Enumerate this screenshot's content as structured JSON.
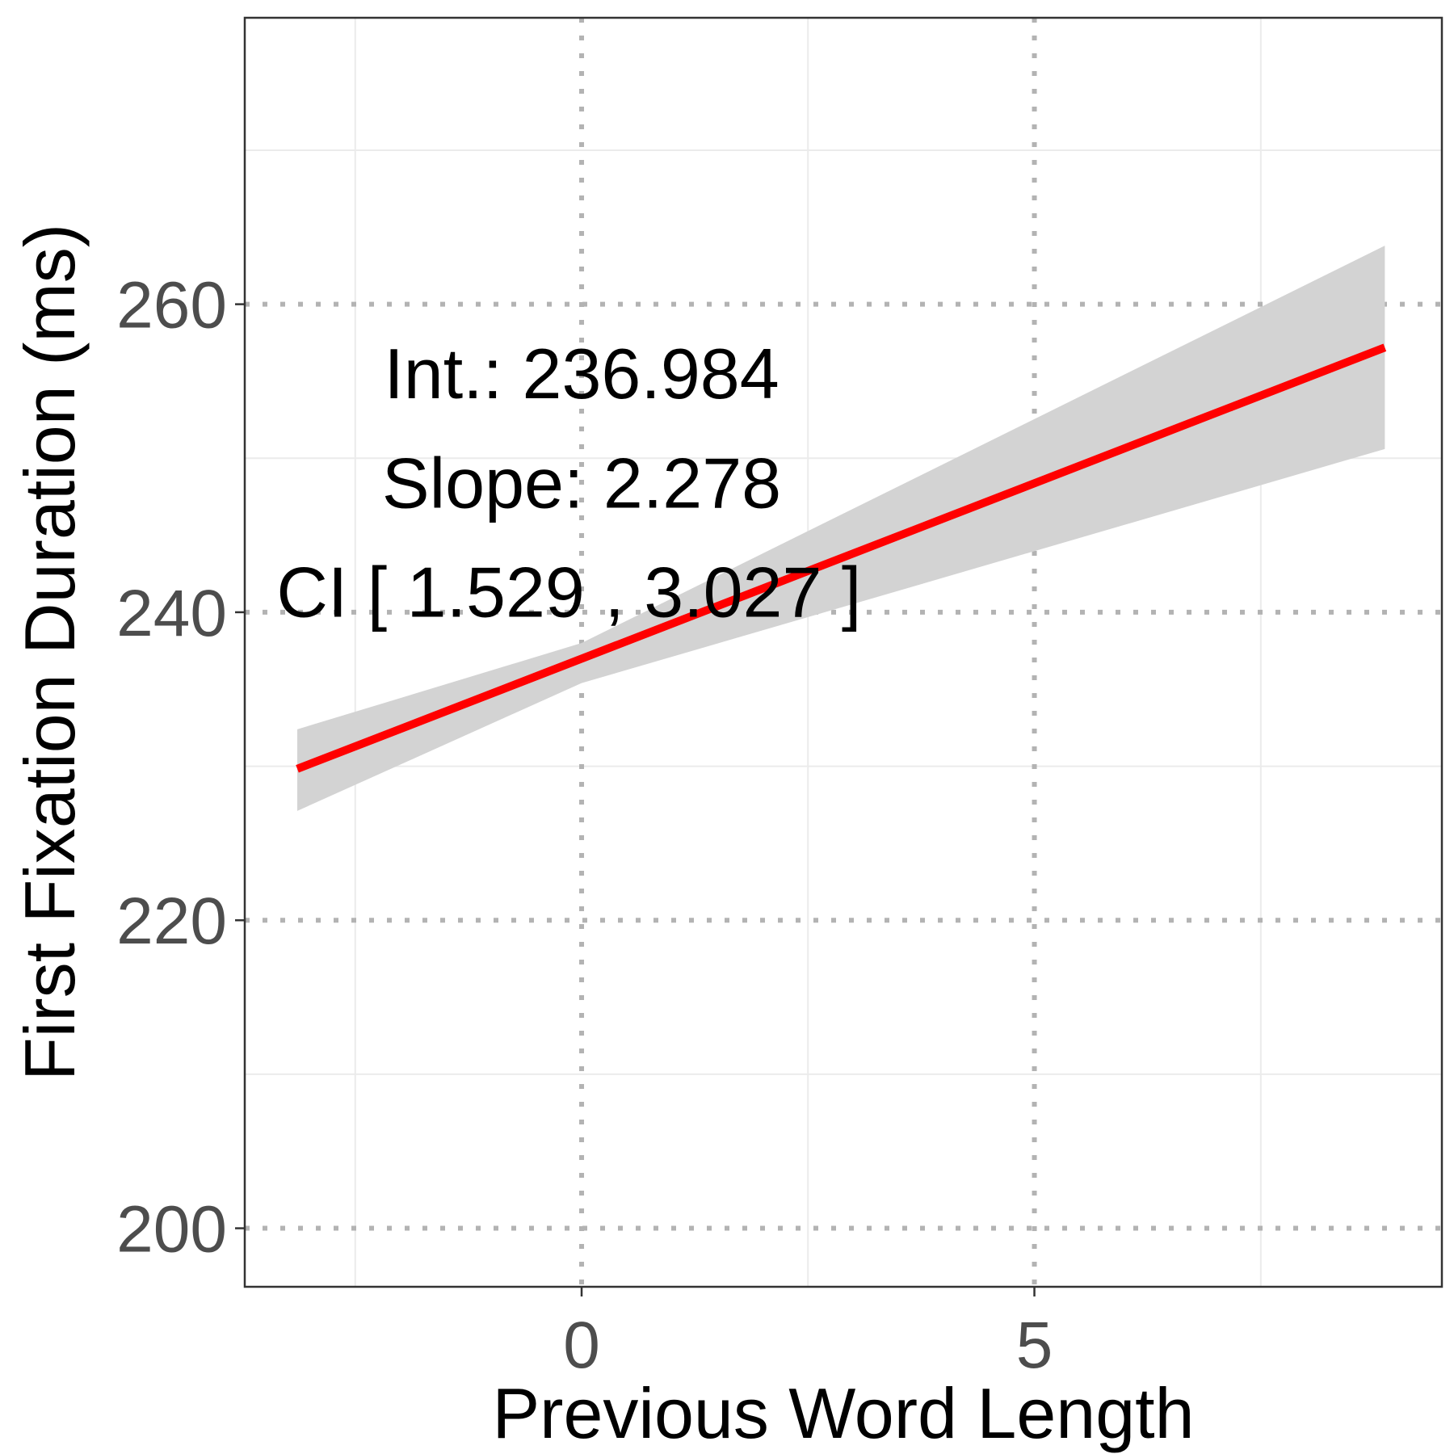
{
  "chart_data": {
    "type": "line",
    "title": "",
    "xlabel": "Previous Word Length",
    "ylabel": "First Fixation Duration (ms)",
    "xlim": [
      -3.72,
      9.5
    ],
    "ylim": [
      196.2,
      278.6
    ],
    "x_ticks": [
      0,
      5
    ],
    "x_tick_labels": [
      "0",
      "5"
    ],
    "x_minor_ticks": [
      -2.5,
      2.5,
      7.5
    ],
    "y_ticks": [
      200,
      220,
      240,
      260
    ],
    "y_tick_labels": [
      "200",
      "220",
      "240",
      "260"
    ],
    "y_minor_ticks": [
      210,
      230,
      250,
      270
    ],
    "grid": true,
    "legend": "none",
    "series": [
      {
        "values_x": [
          -3.14,
          8.87
        ],
        "values_y": [
          229.83,
          257.19
        ],
        "color": "#ff0000"
      }
    ],
    "confidence_band": {
      "x": [
        -3.14,
        0,
        8.87
      ],
      "lower": [
        227.1,
        235.4,
        250.6
      ],
      "upper": [
        232.4,
        238.0,
        263.8
      ],
      "color": "#d3d3d3"
    },
    "annotations": [
      {
        "text": "Int.: 236.984",
        "x": 0.0,
        "y": 253.9
      },
      {
        "text": "Slope: 2.278",
        "x": 0.0,
        "y": 246.8
      },
      {
        "text": "CI [ 1.529 , 3.027 ]",
        "x": -0.14,
        "y": 239.7
      }
    ]
  },
  "colors": {
    "panel_border": "#333333",
    "major_grid": "#b3b3b3",
    "minor_grid": "#ebebeb",
    "fit_line": "#ff0000",
    "band": "#d3d3d3"
  }
}
